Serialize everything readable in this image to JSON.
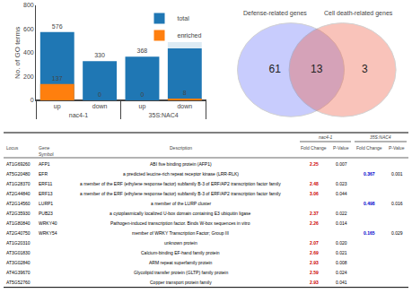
{
  "chart_data": [
    {
      "type": "bar",
      "categories": [
        "up",
        "down",
        "up",
        "down"
      ],
      "groups": [
        "nac4-1",
        "nac4-1",
        "35S:NAC4",
        "35S:NAC4"
      ],
      "series": [
        {
          "name": "total",
          "values": [
            576,
            330,
            368,
            491
          ]
        },
        {
          "name": "enriched",
          "values": [
            137,
            0,
            0,
            8
          ]
        }
      ],
      "ylabel": "No. of GO terms",
      "ylim": [
        0,
        800
      ],
      "yticks": [
        0,
        200,
        400,
        600,
        800
      ],
      "grid": false,
      "legend": "upper right",
      "data_labels": true
    },
    {
      "type": "venn",
      "categories": [
        "Defense-related genes",
        "Cell death-related genes"
      ],
      "values": [
        61,
        3
      ],
      "overlap": 13
    },
    {
      "type": "table",
      "columns": [
        {
          "name": "Locus",
          "values": [
            "AT1G69260",
            "AT5G20480",
            "AT1G28370",
            "AT2G44840",
            "AT2G14560",
            "AT2G35930",
            "AT1G80840",
            "AT2G40750",
            "AT1G20310",
            "AT3G01830",
            "AT3G02840",
            "AT4G39670",
            "AT5G52760"
          ]
        },
        {
          "name": "Gene\nSymbol",
          "values": [
            "AFP1",
            "EFR",
            "ERF11",
            "ERF13",
            "LURP1",
            "PUB23",
            "WRKY40",
            "WRKY54",
            null,
            null,
            null,
            null,
            null
          ]
        },
        {
          "name": "Description",
          "values": [
            "ABI five binding protein (AFP1)",
            "a predicted leucine-rich repeat receptor kinase (LRR-RLK)",
            "a member of the ERF (ethylene response factor) subfamily B-3 of ERF/AP2 transcription factor family",
            "a member of the ERF (ethylene response factor) subfamily B-3 of ERF/AP2 transcription factor family",
            "a member of the LURP cluster",
            "a cytoplasmically localized U-box domain containing E3 ubiquitin ligase",
            "Pathogen-induced transcription factor. Binds W-box sequences in vitro",
            "member of WRKY Transcription Factor; Group III",
            "unknown protein",
            "Calcium-binding EF-hand family protein",
            "ARM repeat superfamily protein",
            "Glycolipid transfer protein (GLTP) family protein",
            "Copper transport protein family"
          ]
        },
        {
          "name": "Fold Change",
          "group": "nac4-1",
          "color": "#cc0000",
          "values": [
            "2.25",
            null,
            "2.48",
            "3.06",
            null,
            "2.37",
            "2.26",
            null,
            "2.07",
            "2.69",
            "2.93",
            "2.59",
            "2.93"
          ]
        },
        {
          "name": "P-Value",
          "group": "nac4-1",
          "values": [
            "0.007",
            null,
            "0.023",
            "0.044",
            null,
            "0.022",
            "0.014",
            null,
            "0.020",
            "0.021",
            "0.008",
            "0.024",
            "0.041"
          ]
        },
        {
          "name": "Fold Change",
          "group": "35S:NAC4",
          "color": "#0000cc",
          "values": [
            null,
            "0.367",
            null,
            null,
            "0.498",
            null,
            null,
            "0.165",
            null,
            null,
            null,
            null,
            null
          ]
        },
        {
          "name": "P-Value",
          "group": "35S:NAC4",
          "values": [
            null,
            "0.001",
            null,
            null,
            "0.016",
            null,
            null,
            "0.029",
            null,
            null,
            null,
            null,
            null
          ]
        }
      ]
    }
  ]
}
